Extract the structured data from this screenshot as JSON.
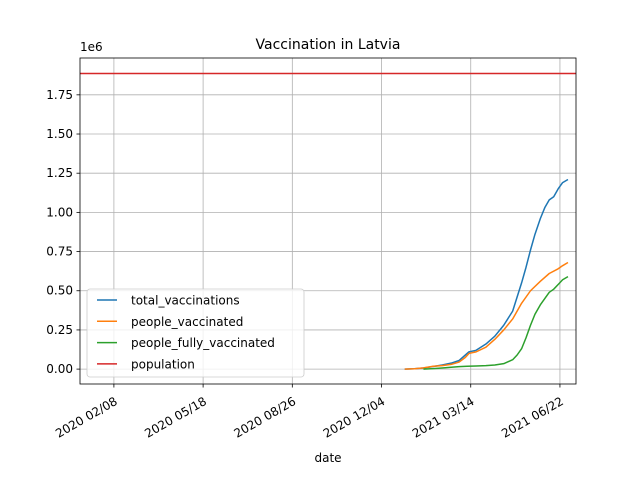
{
  "chart_data": {
    "type": "line",
    "title": "Vaccination in Latvia",
    "xlabel": "date",
    "ylabel": "",
    "y_offset_label": "1e6",
    "x_axis": {
      "type": "date",
      "range": [
        "2020-01-01",
        "2021-07-10"
      ],
      "ticks": [
        {
          "date": "2020-02-08",
          "label": "2020 02/08"
        },
        {
          "date": "2020-05-18",
          "label": "2020 05/18"
        },
        {
          "date": "2020-08-26",
          "label": "2020 08/26"
        },
        {
          "date": "2020-12-04",
          "label": "2020 12/04"
        },
        {
          "date": "2021-03-14",
          "label": "2021 03/14"
        },
        {
          "date": "2021-06-22",
          "label": "2021 06/22"
        }
      ]
    },
    "y_axis": {
      "range": [
        -0.095,
        1.985
      ],
      "ticks": [
        {
          "value": 0.0,
          "label": "0.00"
        },
        {
          "value": 0.25,
          "label": "0.25"
        },
        {
          "value": 0.5,
          "label": "0.50"
        },
        {
          "value": 0.75,
          "label": "0.75"
        },
        {
          "value": 1.0,
          "label": "1.00"
        },
        {
          "value": 1.25,
          "label": "1.25"
        },
        {
          "value": 1.5,
          "label": "1.50"
        },
        {
          "value": 1.75,
          "label": "1.75"
        }
      ]
    },
    "grid": true,
    "legend_position": "lower left",
    "series": [
      {
        "name": "total_vaccinations",
        "color": "#1f77b4",
        "points": [
          [
            "2020-12-30",
            0.0
          ],
          [
            "2021-01-10",
            0.002
          ],
          [
            "2021-01-20",
            0.007
          ],
          [
            "2021-01-31",
            0.017
          ],
          [
            "2021-02-10",
            0.026
          ],
          [
            "2021-02-20",
            0.038
          ],
          [
            "2021-03-01",
            0.055
          ],
          [
            "2021-03-08",
            0.09
          ],
          [
            "2021-03-12",
            0.11
          ],
          [
            "2021-03-20",
            0.12
          ],
          [
            "2021-03-31",
            0.16
          ],
          [
            "2021-04-10",
            0.21
          ],
          [
            "2021-04-20",
            0.28
          ],
          [
            "2021-04-30",
            0.37
          ],
          [
            "2021-05-10",
            0.55
          ],
          [
            "2021-05-15",
            0.65
          ],
          [
            "2021-05-20",
            0.76
          ],
          [
            "2021-05-25",
            0.86
          ],
          [
            "2021-05-31",
            0.96
          ],
          [
            "2021-06-05",
            1.03
          ],
          [
            "2021-06-10",
            1.08
          ],
          [
            "2021-06-15",
            1.1
          ],
          [
            "2021-06-20",
            1.15
          ],
          [
            "2021-06-25",
            1.19
          ],
          [
            "2021-07-01",
            1.21
          ]
        ]
      },
      {
        "name": "people_vaccinated",
        "color": "#ff7f0e",
        "points": [
          [
            "2020-12-30",
            0.0
          ],
          [
            "2021-01-10",
            0.002
          ],
          [
            "2021-01-20",
            0.008
          ],
          [
            "2021-01-31",
            0.018
          ],
          [
            "2021-02-10",
            0.022
          ],
          [
            "2021-02-20",
            0.03
          ],
          [
            "2021-03-01",
            0.045
          ],
          [
            "2021-03-08",
            0.075
          ],
          [
            "2021-03-12",
            0.1
          ],
          [
            "2021-03-20",
            0.11
          ],
          [
            "2021-03-31",
            0.14
          ],
          [
            "2021-04-10",
            0.19
          ],
          [
            "2021-04-20",
            0.25
          ],
          [
            "2021-04-30",
            0.32
          ],
          [
            "2021-05-10",
            0.42
          ],
          [
            "2021-05-20",
            0.5
          ],
          [
            "2021-05-31",
            0.56
          ],
          [
            "2021-06-10",
            0.61
          ],
          [
            "2021-06-20",
            0.64
          ],
          [
            "2021-06-25",
            0.66
          ],
          [
            "2021-07-01",
            0.68
          ]
        ]
      },
      {
        "name": "people_fully_vaccinated",
        "color": "#2ca02c",
        "points": [
          [
            "2021-01-20",
            0.0
          ],
          [
            "2021-01-31",
            0.003
          ],
          [
            "2021-02-10",
            0.007
          ],
          [
            "2021-02-20",
            0.012
          ],
          [
            "2021-03-01",
            0.016
          ],
          [
            "2021-03-10",
            0.018
          ],
          [
            "2021-03-20",
            0.02
          ],
          [
            "2021-03-31",
            0.022
          ],
          [
            "2021-04-10",
            0.026
          ],
          [
            "2021-04-20",
            0.035
          ],
          [
            "2021-04-30",
            0.06
          ],
          [
            "2021-05-05",
            0.09
          ],
          [
            "2021-05-10",
            0.13
          ],
          [
            "2021-05-15",
            0.2
          ],
          [
            "2021-05-20",
            0.28
          ],
          [
            "2021-05-25",
            0.35
          ],
          [
            "2021-05-31",
            0.41
          ],
          [
            "2021-06-05",
            0.45
          ],
          [
            "2021-06-10",
            0.49
          ],
          [
            "2021-06-15",
            0.51
          ],
          [
            "2021-06-20",
            0.54
          ],
          [
            "2021-06-25",
            0.57
          ],
          [
            "2021-07-01",
            0.59
          ]
        ]
      },
      {
        "name": "population",
        "color": "#d62728",
        "points": [
          [
            "2020-01-01",
            1.886
          ],
          [
            "2021-07-10",
            1.886
          ]
        ]
      }
    ]
  }
}
